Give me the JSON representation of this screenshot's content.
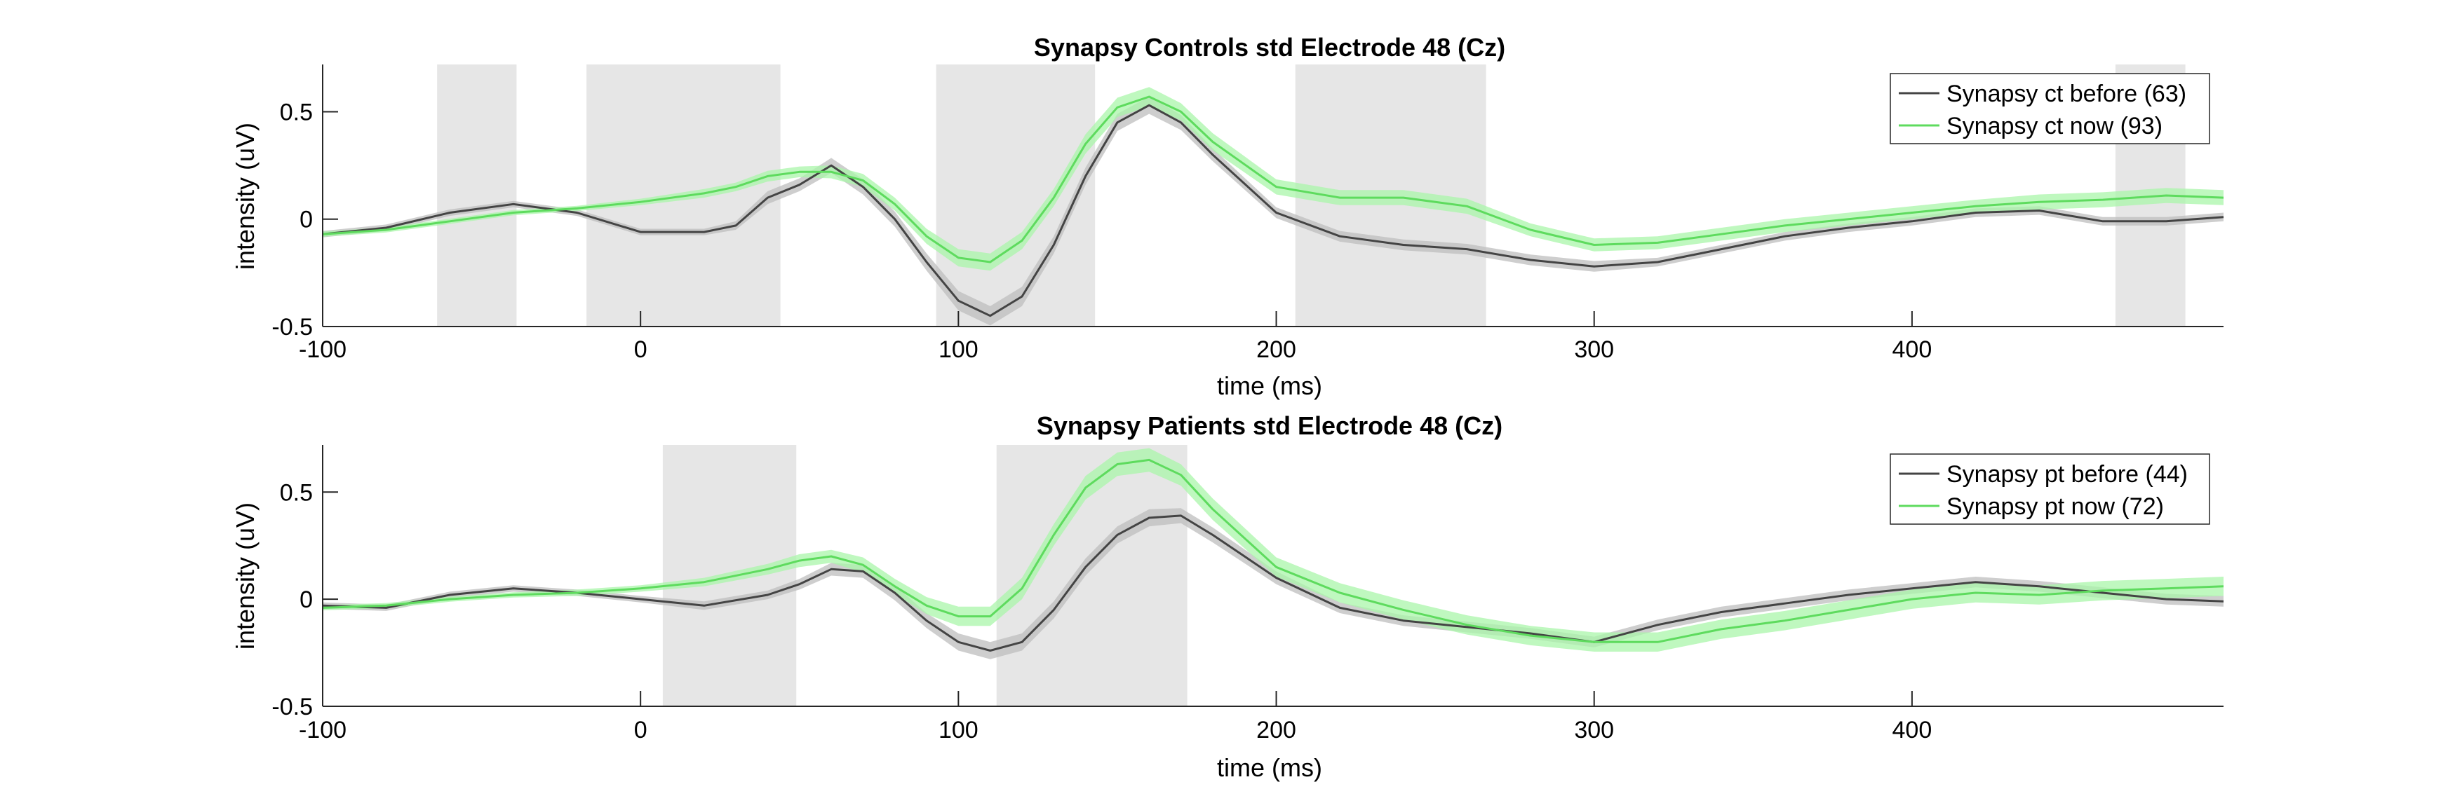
{
  "chart_data": [
    {
      "type": "line",
      "title": "Synapsy Controls std Electrode 48 (Cz)",
      "xlabel": "time (ms)",
      "ylabel": "intensity (uV)",
      "xlim": [
        -100,
        498
      ],
      "ylim": [
        -0.5,
        0.72
      ],
      "xticks": [
        -100,
        0,
        100,
        200,
        300,
        400
      ],
      "xtick_labels": [
        "-100",
        "0",
        "100",
        "200",
        "300",
        "400"
      ],
      "yticks": [
        -0.5,
        0,
        0.5
      ],
      "ytick_labels": [
        "-0.5",
        "0",
        "0.5"
      ],
      "grid": false,
      "legend_position": "top-right",
      "shaded_intervals": [
        [
          -64,
          -39
        ],
        [
          -17,
          44
        ],
        [
          93,
          143
        ],
        [
          206,
          266
        ],
        [
          464,
          486
        ]
      ],
      "series": [
        {
          "name": "Synapsy ct before (63)",
          "color": "#444444",
          "band_color": "#bdbdbd",
          "x": [
            -100,
            -80,
            -60,
            -40,
            -20,
            0,
            20,
            30,
            40,
            50,
            60,
            70,
            80,
            90,
            100,
            110,
            120,
            130,
            140,
            150,
            160,
            170,
            180,
            200,
            220,
            240,
            260,
            280,
            300,
            320,
            340,
            360,
            380,
            400,
            420,
            440,
            460,
            480,
            498
          ],
          "values": [
            -0.07,
            -0.04,
            0.03,
            0.07,
            0.03,
            -0.06,
            -0.06,
            -0.03,
            0.1,
            0.16,
            0.25,
            0.15,
            0.0,
            -0.2,
            -0.38,
            -0.45,
            -0.36,
            -0.12,
            0.2,
            0.45,
            0.53,
            0.45,
            0.3,
            0.03,
            -0.08,
            -0.12,
            -0.14,
            -0.19,
            -0.22,
            -0.2,
            -0.14,
            -0.08,
            -0.04,
            -0.01,
            0.03,
            0.04,
            -0.01,
            -0.01,
            0.01
          ],
          "band": [
            0.015,
            0.015,
            0.015,
            0.015,
            0.015,
            0.015,
            0.015,
            0.02,
            0.03,
            0.03,
            0.035,
            0.035,
            0.035,
            0.04,
            0.045,
            0.045,
            0.045,
            0.04,
            0.04,
            0.04,
            0.04,
            0.035,
            0.03,
            0.025,
            0.025,
            0.025,
            0.025,
            0.025,
            0.025,
            0.02,
            0.02,
            0.02,
            0.02,
            0.02,
            0.02,
            0.02,
            0.02,
            0.02,
            0.02
          ]
        },
        {
          "name": "Synapsy ct now (93)",
          "color": "#5edb5e",
          "band_color": "#a9f5a9",
          "x": [
            -100,
            -80,
            -60,
            -40,
            -20,
            0,
            20,
            30,
            40,
            50,
            60,
            70,
            80,
            90,
            100,
            110,
            120,
            130,
            140,
            150,
            160,
            170,
            180,
            200,
            220,
            240,
            260,
            280,
            300,
            320,
            340,
            360,
            380,
            400,
            420,
            440,
            460,
            480,
            498
          ],
          "values": [
            -0.07,
            -0.05,
            -0.01,
            0.03,
            0.05,
            0.08,
            0.12,
            0.15,
            0.2,
            0.22,
            0.22,
            0.18,
            0.07,
            -0.08,
            -0.18,
            -0.2,
            -0.1,
            0.1,
            0.35,
            0.52,
            0.57,
            0.5,
            0.36,
            0.15,
            0.1,
            0.1,
            0.06,
            -0.05,
            -0.12,
            -0.11,
            -0.07,
            -0.03,
            0.0,
            0.03,
            0.06,
            0.08,
            0.09,
            0.11,
            0.1
          ],
          "band": [
            0.012,
            0.012,
            0.012,
            0.012,
            0.012,
            0.015,
            0.02,
            0.02,
            0.025,
            0.025,
            0.03,
            0.03,
            0.03,
            0.035,
            0.04,
            0.04,
            0.04,
            0.04,
            0.045,
            0.045,
            0.045,
            0.04,
            0.04,
            0.035,
            0.035,
            0.035,
            0.035,
            0.03,
            0.03,
            0.03,
            0.03,
            0.03,
            0.03,
            0.03,
            0.03,
            0.035,
            0.035,
            0.035,
            0.035
          ]
        }
      ]
    },
    {
      "type": "line",
      "title": "Synapsy Patients std Electrode 48 (Cz)",
      "xlabel": "time (ms)",
      "ylabel": "intensity (uV)",
      "xlim": [
        -100,
        498
      ],
      "ylim": [
        -0.5,
        0.72
      ],
      "xticks": [
        -100,
        0,
        100,
        200,
        300,
        400
      ],
      "xtick_labels": [
        "-100",
        "0",
        "100",
        "200",
        "300",
        "400"
      ],
      "yticks": [
        -0.5,
        0,
        0.5
      ],
      "ytick_labels": [
        "-0.5",
        "0",
        "0.5"
      ],
      "grid": false,
      "legend_position": "top-right",
      "shaded_intervals": [
        [
          7,
          49
        ],
        [
          112,
          172
        ]
      ],
      "series": [
        {
          "name": "Synapsy pt before (44)",
          "color": "#444444",
          "band_color": "#bdbdbd",
          "x": [
            -100,
            -80,
            -60,
            -40,
            -20,
            0,
            20,
            40,
            50,
            60,
            70,
            80,
            90,
            100,
            110,
            120,
            130,
            140,
            150,
            160,
            170,
            180,
            200,
            220,
            240,
            260,
            280,
            300,
            320,
            340,
            360,
            380,
            400,
            420,
            440,
            460,
            480,
            498
          ],
          "values": [
            -0.03,
            -0.04,
            0.02,
            0.05,
            0.03,
            0.0,
            -0.03,
            0.02,
            0.07,
            0.14,
            0.13,
            0.03,
            -0.1,
            -0.2,
            -0.24,
            -0.2,
            -0.05,
            0.15,
            0.3,
            0.38,
            0.39,
            0.3,
            0.1,
            -0.04,
            -0.1,
            -0.13,
            -0.16,
            -0.2,
            -0.12,
            -0.06,
            -0.02,
            0.02,
            0.05,
            0.08,
            0.06,
            0.03,
            0.0,
            -0.01
          ],
          "band": [
            0.015,
            0.015,
            0.015,
            0.015,
            0.015,
            0.015,
            0.02,
            0.02,
            0.025,
            0.03,
            0.03,
            0.035,
            0.035,
            0.04,
            0.04,
            0.04,
            0.04,
            0.04,
            0.04,
            0.04,
            0.035,
            0.035,
            0.03,
            0.025,
            0.025,
            0.025,
            0.025,
            0.025,
            0.025,
            0.025,
            0.025,
            0.025,
            0.025,
            0.025,
            0.025,
            0.025,
            0.025,
            0.025
          ]
        },
        {
          "name": "Synapsy pt now (72)",
          "color": "#5edb5e",
          "band_color": "#a9f5a9",
          "x": [
            -100,
            -80,
            -60,
            -40,
            -20,
            0,
            20,
            40,
            50,
            60,
            70,
            80,
            90,
            100,
            110,
            120,
            130,
            140,
            150,
            160,
            170,
            180,
            200,
            220,
            240,
            260,
            280,
            300,
            320,
            340,
            360,
            380,
            400,
            420,
            440,
            460,
            480,
            498
          ],
          "values": [
            -0.04,
            -0.03,
            0.0,
            0.02,
            0.03,
            0.05,
            0.08,
            0.14,
            0.18,
            0.2,
            0.16,
            0.06,
            -0.03,
            -0.08,
            -0.08,
            0.05,
            0.3,
            0.52,
            0.63,
            0.65,
            0.58,
            0.42,
            0.15,
            0.03,
            -0.05,
            -0.12,
            -0.17,
            -0.2,
            -0.2,
            -0.14,
            -0.1,
            -0.05,
            0.0,
            0.03,
            0.02,
            0.04,
            0.05,
            0.06
          ],
          "band": [
            0.012,
            0.012,
            0.012,
            0.012,
            0.015,
            0.015,
            0.02,
            0.025,
            0.03,
            0.03,
            0.035,
            0.035,
            0.04,
            0.045,
            0.045,
            0.05,
            0.05,
            0.055,
            0.055,
            0.055,
            0.05,
            0.05,
            0.045,
            0.045,
            0.045,
            0.045,
            0.045,
            0.045,
            0.045,
            0.045,
            0.045,
            0.045,
            0.045,
            0.045,
            0.045,
            0.045,
            0.045,
            0.045
          ]
        }
      ]
    }
  ]
}
